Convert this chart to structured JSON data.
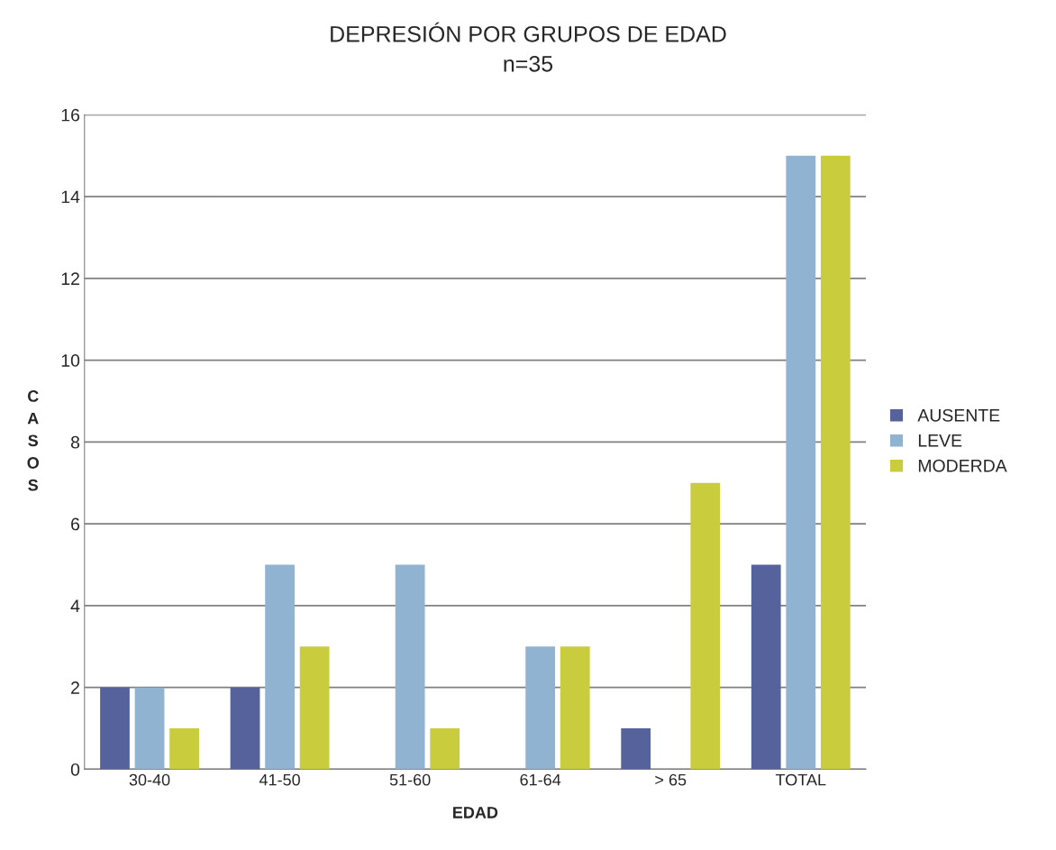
{
  "chart_data": {
    "type": "bar",
    "title": "DEPRESIÓN POR GRUPOS DE EDAD",
    "subtitle": "n=35",
    "xlabel": "EDAD",
    "ylabel": "CASOS",
    "categories": [
      "30-40",
      "41-50",
      "51-60",
      "61-64",
      "> 65",
      "TOTAL"
    ],
    "series": [
      {
        "name": "AUSENTE",
        "color": "#55629c",
        "values": [
          2,
          2,
          0,
          0,
          1,
          5
        ]
      },
      {
        "name": "LEVE",
        "color": "#8fb3d1",
        "values": [
          2,
          5,
          5,
          3,
          0,
          15
        ]
      },
      {
        "name": "MODERDA",
        "color": "#c9cc3d",
        "values": [
          1,
          3,
          1,
          3,
          7,
          15
        ]
      }
    ],
    "ylim": [
      0,
      16
    ],
    "yticks": [
      0,
      2,
      4,
      6,
      8,
      10,
      12,
      14,
      16
    ],
    "grid": "y",
    "legend": "right"
  }
}
